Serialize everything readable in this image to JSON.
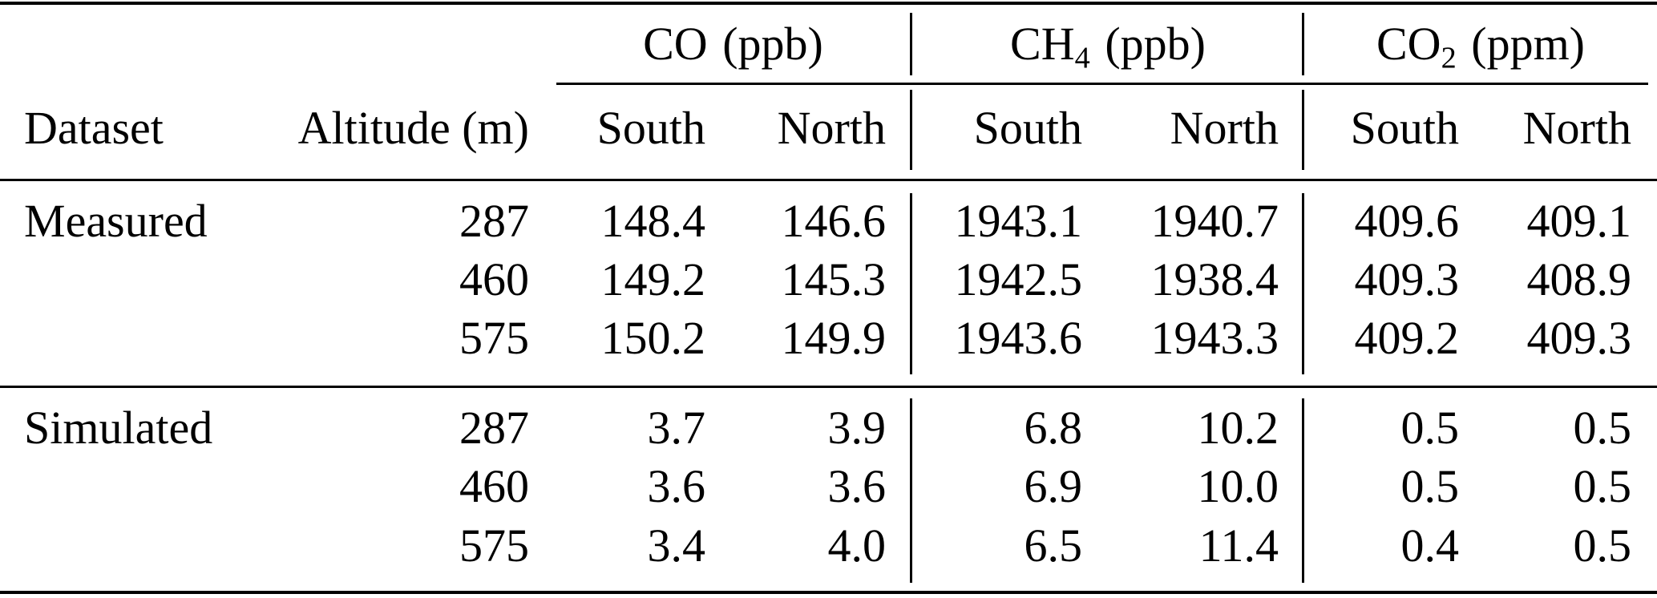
{
  "colors": {
    "background": "#ffffff",
    "text": "#000000",
    "rule": "#000000"
  },
  "table": {
    "group_headers": [
      {
        "formula": "CO",
        "subscript": "",
        "unit": "(ppb)"
      },
      {
        "formula": "CH",
        "subscript": "4",
        "unit": "(ppb)"
      },
      {
        "formula": "CO",
        "subscript": "2",
        "unit": "(ppm)"
      }
    ],
    "column_headers": {
      "dataset": "Dataset",
      "altitude": "Altitude (m)",
      "south": "South",
      "north": "North"
    },
    "sections": [
      {
        "dataset": "Measured",
        "rows": [
          {
            "altitude": "287",
            "co_south": "148.4",
            "co_north": "146.6",
            "ch4_south": "1943.1",
            "ch4_north": "1940.7",
            "co2_south": "409.6",
            "co2_north": "409.1"
          },
          {
            "altitude": "460",
            "co_south": "149.2",
            "co_north": "145.3",
            "ch4_south": "1942.5",
            "ch4_north": "1938.4",
            "co2_south": "409.3",
            "co2_north": "408.9"
          },
          {
            "altitude": "575",
            "co_south": "150.2",
            "co_north": "149.9",
            "ch4_south": "1943.6",
            "ch4_north": "1943.3",
            "co2_south": "409.2",
            "co2_north": "409.3"
          }
        ]
      },
      {
        "dataset": "Simulated",
        "rows": [
          {
            "altitude": "287",
            "co_south": "3.7",
            "co_north": "3.9",
            "ch4_south": "6.8",
            "ch4_north": "10.2",
            "co2_south": "0.5",
            "co2_north": "0.5"
          },
          {
            "altitude": "460",
            "co_south": "3.6",
            "co_north": "3.6",
            "ch4_south": "6.9",
            "ch4_north": "10.0",
            "co2_south": "0.5",
            "co2_north": "0.5"
          },
          {
            "altitude": "575",
            "co_south": "3.4",
            "co_north": "4.0",
            "ch4_south": "6.5",
            "ch4_north": "11.4",
            "co2_south": "0.4",
            "co2_north": "0.5"
          }
        ]
      }
    ]
  }
}
